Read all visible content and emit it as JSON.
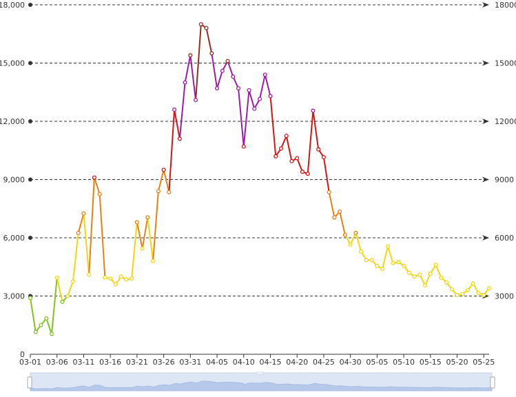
{
  "chart_data": {
    "type": "line",
    "x": [
      "03-01",
      "03-02",
      "03-03",
      "03-04",
      "03-05",
      "03-06",
      "03-07",
      "03-08",
      "03-09",
      "03-10",
      "03-11",
      "03-12",
      "03-13",
      "03-14",
      "03-15",
      "03-16",
      "03-17",
      "03-18",
      "03-19",
      "03-20",
      "03-21",
      "03-22",
      "03-23",
      "03-24",
      "03-25",
      "03-26",
      "03-27",
      "03-28",
      "03-29",
      "03-30",
      "03-31",
      "04-01",
      "04-02",
      "04-03",
      "04-04",
      "04-05",
      "04-06",
      "04-07",
      "04-08",
      "04-09",
      "04-10",
      "04-11",
      "04-12",
      "04-13",
      "04-14",
      "04-15",
      "04-16",
      "04-17",
      "04-18",
      "04-19",
      "04-20",
      "04-21",
      "04-22",
      "04-23",
      "04-24",
      "04-25",
      "04-26",
      "04-27",
      "04-28",
      "04-29",
      "04-30",
      "05-01",
      "05-02",
      "05-03",
      "05-04",
      "05-05",
      "05-06",
      "05-07",
      "05-08",
      "05-09",
      "05-10",
      "05-11",
      "05-12",
      "05-13",
      "05-14",
      "05-15",
      "05-16",
      "05-17",
      "05-18",
      "05-19",
      "05-20",
      "05-21",
      "05-22",
      "05-23",
      "05-24",
      "05-25",
      "05-26"
    ],
    "values": [
      2900,
      1150,
      1500,
      1850,
      1050,
      3950,
      2700,
      3000,
      3750,
      6250,
      7250,
      4100,
      9100,
      8250,
      3950,
      3900,
      3600,
      4000,
      3850,
      3900,
      6800,
      5450,
      7050,
      4800,
      8400,
      9500,
      8350,
      12600,
      11100,
      14000,
      15400,
      13100,
      17000,
      16800,
      15500,
      13700,
      14600,
      15100,
      14300,
      13700,
      10700,
      13600,
      12650,
      13150,
      14400,
      13300,
      10200,
      10600,
      11250,
      9950,
      10100,
      9400,
      9300,
      12550,
      10550,
      10150,
      8350,
      7050,
      7350,
      6150,
      5650,
      6250,
      5300,
      4850,
      4850,
      4550,
      4400,
      5550,
      4700,
      4750,
      4550,
      4200,
      4000,
      4100,
      3550,
      4150,
      4600,
      3950,
      3700,
      3350,
      3050,
      3100,
      3300,
      3650,
      3150,
      3050,
      3400
    ],
    "x_tick_labels": [
      "03-01",
      "03-06",
      "03-11",
      "03-16",
      "03-21",
      "03-26",
      "03-31",
      "04-05",
      "04-10",
      "04-15",
      "04-20",
      "04-25",
      "04-30",
      "05-05",
      "05-10",
      "05-15",
      "05-20",
      "05-25"
    ],
    "y_tick_labels_left": [
      "0",
      "3,000",
      "6,000",
      "9,000",
      "12,000",
      "15,000",
      "18,000"
    ],
    "y_tick_labels_right": [
      "3000",
      "6000",
      "9000",
      "12000",
      "15000",
      "18000"
    ],
    "ylim": [
      0,
      18000
    ],
    "grid": "horizontal dashed",
    "visual_map": [
      {
        "min": 0,
        "max": 3000,
        "color": "#7ec51c"
      },
      {
        "min": 3000,
        "max": 6000,
        "color": "#f4d60f"
      },
      {
        "min": 6000,
        "max": 9000,
        "color": "#f07d10"
      },
      {
        "min": 9000,
        "max": 12000,
        "color": "#e01010"
      },
      {
        "min": 12000,
        "max": 15000,
        "color": "#a01aa8"
      },
      {
        "min": 15000,
        "max": 18000,
        "color": "#9a2a1a"
      }
    ],
    "marker": "hollow circle",
    "data_zoom": "bottom slider, full range selected"
  }
}
